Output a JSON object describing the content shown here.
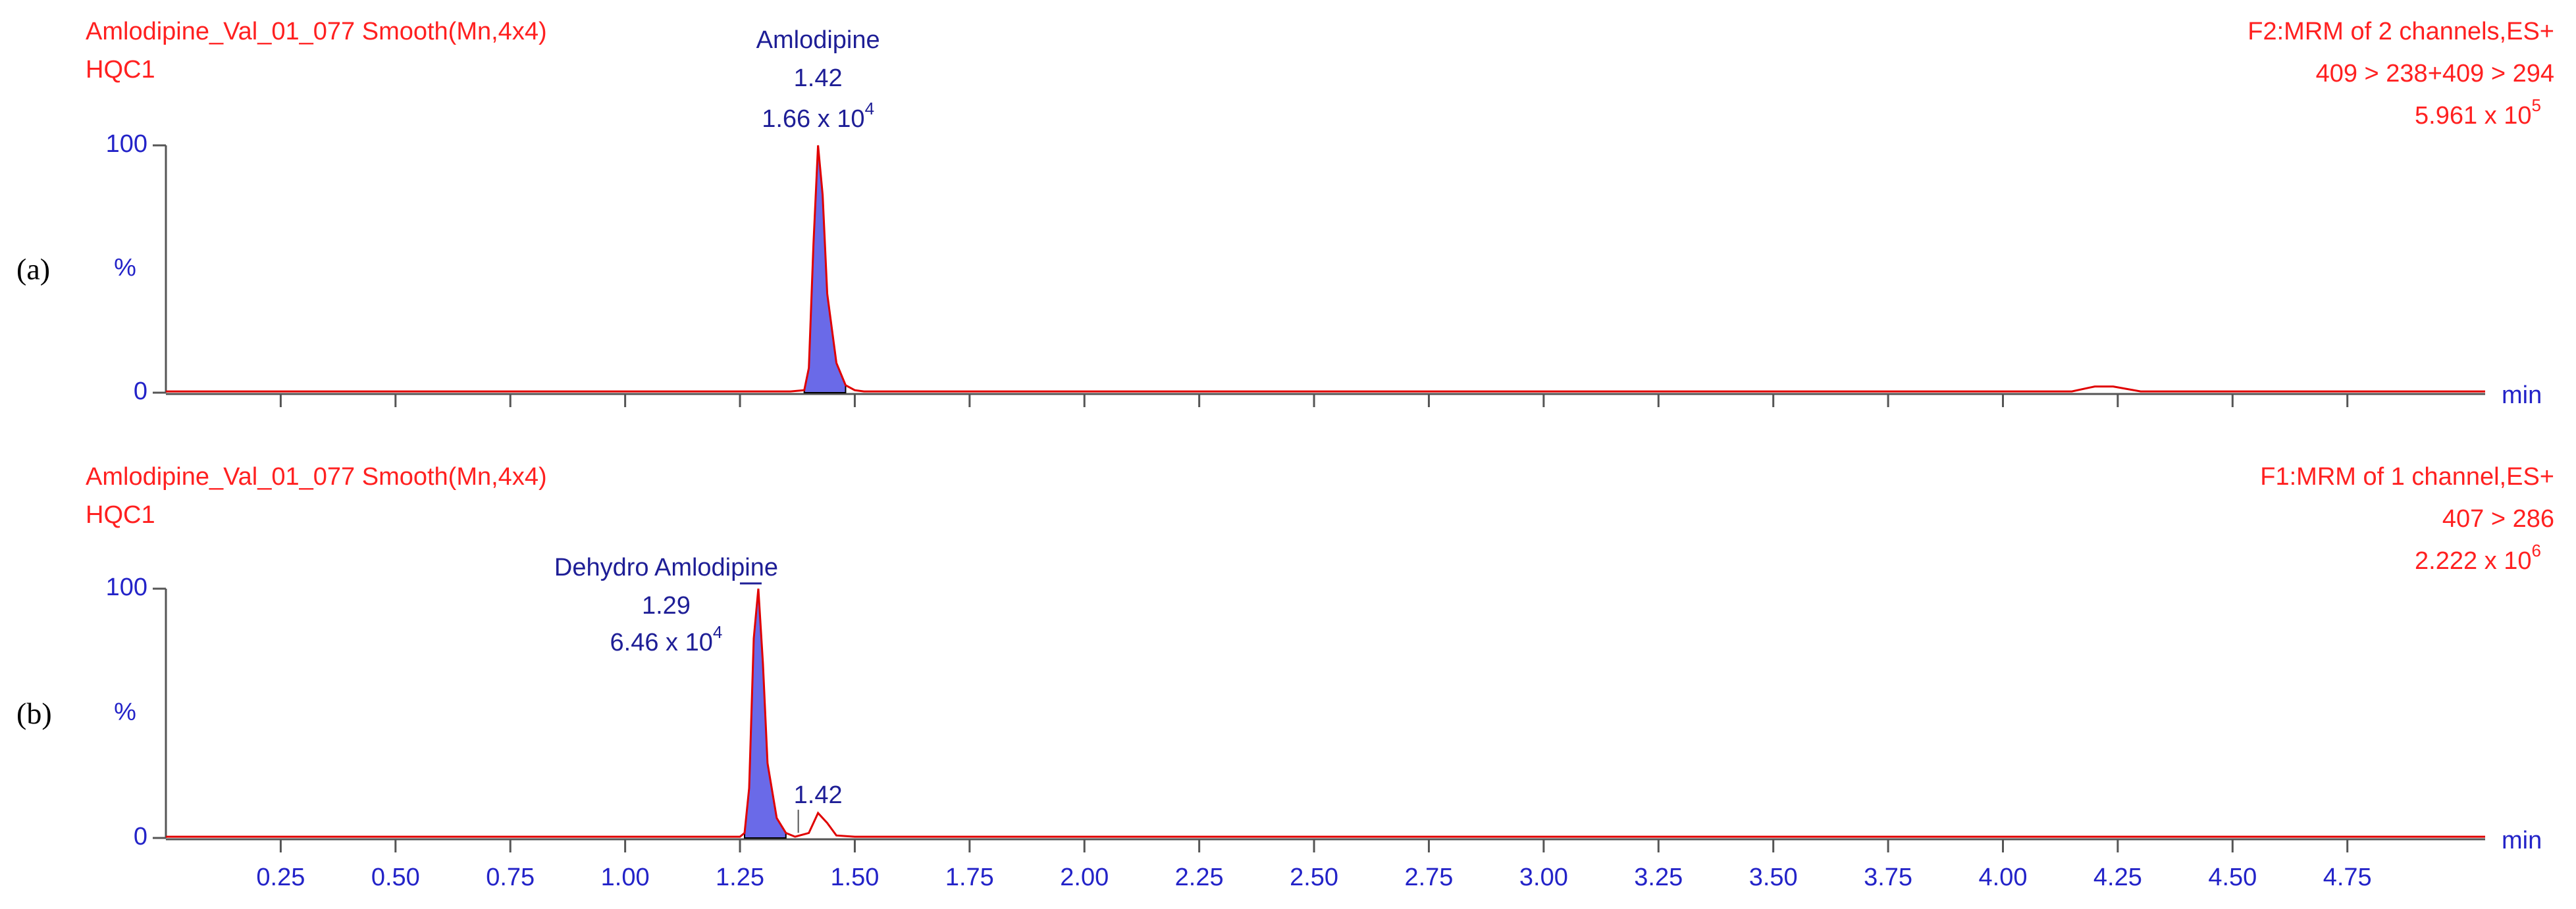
{
  "chart_data": [
    {
      "type": "line",
      "panel_label": "(a)",
      "title": "Amlodipine_Val_01_077 Smooth(Mn,4x4)",
      "subtitle": "HQC1",
      "channel": "F2:MRM of 2 channels,ES+",
      "transition": "409 > 238+409 > 294",
      "intensity": "5.961 x 10",
      "intensity_exponent": "5",
      "ylabel": "%",
      "xlabel": "min",
      "xlim": [
        0,
        5.05
      ],
      "ylim": [
        0,
        100
      ],
      "yticks": [
        0,
        100
      ],
      "xticks": [
        0.25,
        0.5,
        0.75,
        1,
        1.25,
        1.5,
        1.75,
        2,
        2.25,
        2.5,
        2.75,
        3,
        3.25,
        3.5,
        3.75,
        4,
        4.25,
        4.5,
        4.75
      ],
      "show_xtick_labels": false,
      "x": [
        0,
        1.36,
        1.39,
        1.4,
        1.41,
        1.42,
        1.43,
        1.44,
        1.46,
        1.48,
        1.5,
        1.52,
        4.15,
        4.2,
        4.24,
        4.3,
        5.05
      ],
      "values": [
        0.5,
        0.5,
        1,
        10,
        60,
        100,
        80,
        40,
        12,
        3,
        1,
        0.5,
        0.5,
        2.5,
        2.5,
        0.5,
        0.5
      ],
      "color": "#e00000",
      "fill_color": "#6a6ae8",
      "fill_range": [
        1.39,
        1.48
      ],
      "peaks": [
        {
          "name": "Amlodipine",
          "rt": 1.42,
          "area": "1.66 x 10",
          "area_exponent": "4"
        }
      ]
    },
    {
      "type": "line",
      "panel_label": "(b)",
      "title": "Amlodipine_Val_01_077 Smooth(Mn,4x4)",
      "subtitle": "HQC1",
      "channel": "F1:MRM of 1 channel,ES+",
      "transition": "407 > 286",
      "intensity": "2.222 x 10",
      "intensity_exponent": "6",
      "ylabel": "%",
      "xlabel": "min",
      "xlim": [
        0,
        5.05
      ],
      "ylim": [
        0,
        100
      ],
      "yticks": [
        0,
        100
      ],
      "xticks": [
        0.25,
        {
          "value": 0.5,
          "label": "0.50"
        },
        0.75,
        {
          "value": 1,
          "label": "1.00"
        },
        1.25,
        {
          "value": 1.5,
          "label": "1.50"
        },
        1.75,
        {
          "value": 2,
          "label": "2.00"
        },
        2.25,
        {
          "value": 2.5,
          "label": "2.50"
        },
        2.75,
        {
          "value": 3,
          "label": "3.00"
        },
        3.25,
        {
          "value": 3.5,
          "label": "3.50"
        },
        3.75,
        {
          "value": 4,
          "label": "4.00"
        },
        4.25,
        {
          "value": 4.5,
          "label": "4.50"
        },
        4.75
      ],
      "show_xtick_labels": true,
      "x": [
        0,
        1.25,
        1.26,
        1.27,
        1.28,
        1.29,
        1.3,
        1.31,
        1.33,
        1.35,
        1.37,
        1.4,
        1.42,
        1.44,
        1.46,
        1.5,
        5.05
      ],
      "values": [
        0.5,
        0.5,
        2,
        20,
        80,
        100,
        70,
        30,
        8,
        2,
        0.5,
        2,
        10,
        6,
        1,
        0.5,
        0.5
      ],
      "color": "#e00000",
      "fill_color": "#6a6ae8",
      "fill_range": [
        1.26,
        1.36
      ],
      "peaks": [
        {
          "name": "Dehydro Amlodipine",
          "rt": 1.29,
          "area": "6.46 x 10",
          "area_exponent": "4"
        },
        {
          "rt": 1.42
        }
      ]
    }
  ]
}
